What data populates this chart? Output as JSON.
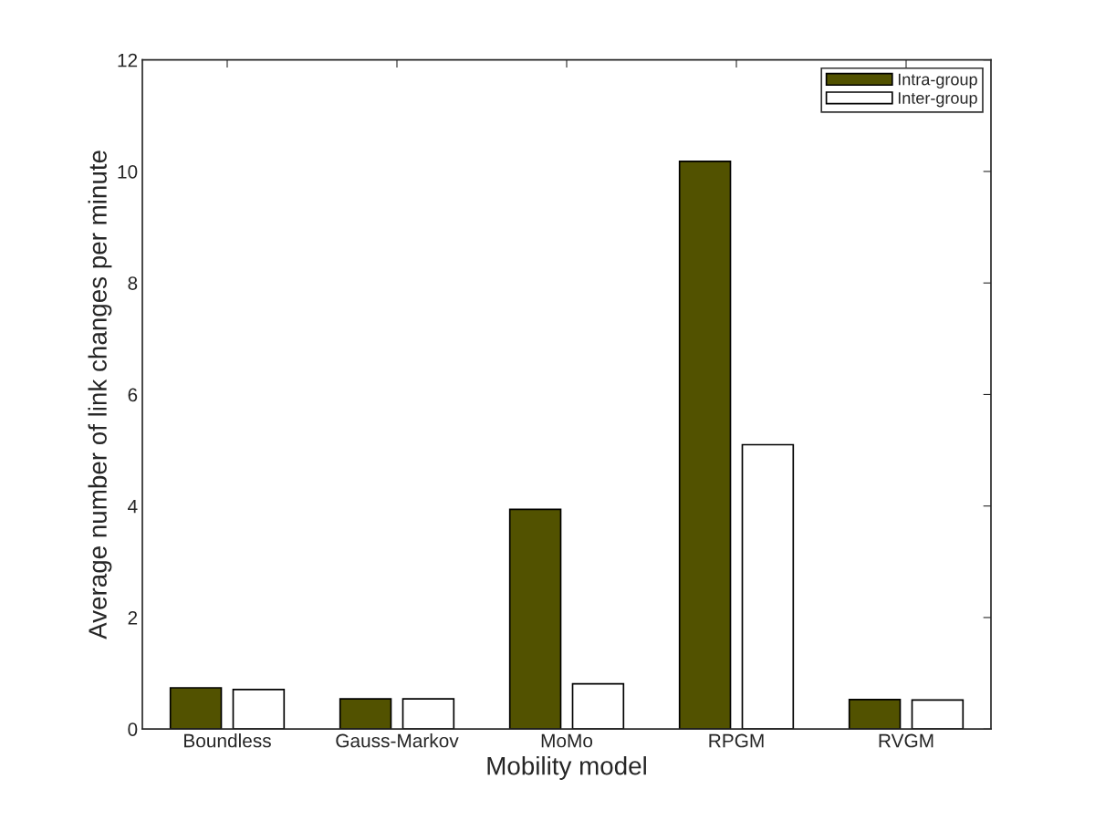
{
  "chart_data": {
    "type": "bar",
    "xlabel": "Mobility model",
    "ylabel": "Average number of link changes per minute",
    "categories": [
      "Boundless",
      "Gauss-Markov",
      "MoMo",
      "RPGM",
      "RVGM"
    ],
    "series": [
      {
        "name": "Intra-group",
        "color": "#525200",
        "values": [
          0.74,
          0.54,
          3.94,
          10.18,
          0.53
        ]
      },
      {
        "name": "Inter-group",
        "color": "#ffffff",
        "values": [
          0.71,
          0.54,
          0.81,
          5.1,
          0.52
        ]
      }
    ],
    "ylim": [
      0,
      12
    ],
    "yticks": [
      0,
      2,
      4,
      6,
      8,
      10,
      12
    ],
    "grid": false,
    "legend": "top right"
  }
}
